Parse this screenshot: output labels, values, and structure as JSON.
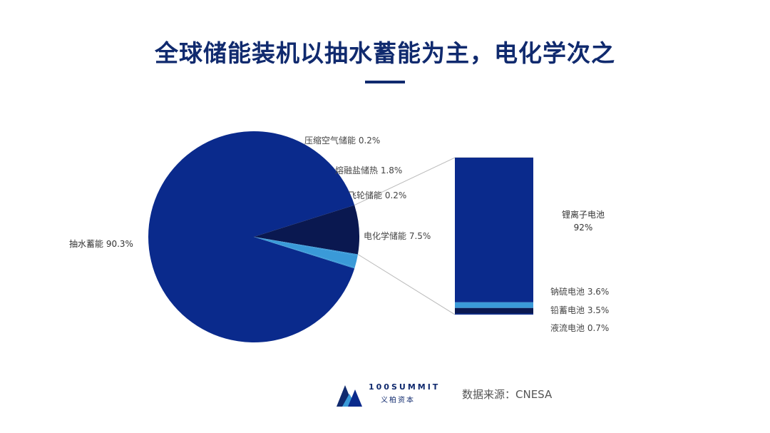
{
  "title": "全球储能装机以抽水蓄能为主，电化学次之",
  "colors": {
    "title": "#102a6e",
    "main": "#0a2a8c",
    "dark": "#0a1850",
    "light": "#3a9ad8",
    "connector": "#bbbbbb"
  },
  "chart_data": [
    {
      "type": "pie",
      "title": "",
      "slices": [
        {
          "label": "抽水蓄能",
          "value": 90.3,
          "value_text": "90.3%",
          "color": "#0a2a8c"
        },
        {
          "label": "电化学储能",
          "value": 7.5,
          "value_text": "7.5%",
          "color": "#0a1850"
        },
        {
          "label": "飞轮储能",
          "value": 0.2,
          "value_text": "0.2%",
          "color": "#3a9ad8"
        },
        {
          "label": "熔融盐储热",
          "value": 1.8,
          "value_text": "1.8%",
          "color": "#3a9ad8"
        },
        {
          "label": "压缩空气储能",
          "value": 0.2,
          "value_text": "0.2%",
          "color": "#3a9ad8"
        }
      ]
    },
    {
      "type": "bar",
      "stacked": true,
      "title": "",
      "breakdown_of": "电化学储能",
      "segments": [
        {
          "label": "锂离子电池",
          "value": 92,
          "value_text": "92%",
          "color": "#0a2a8c"
        },
        {
          "label": "钠硫电池",
          "value": 3.6,
          "value_text": "3.6%",
          "color": "#3a9ad8"
        },
        {
          "label": "铅蓄电池",
          "value": 3.5,
          "value_text": "3.5%",
          "color": "#0a1850"
        },
        {
          "label": "液流电池",
          "value": 0.7,
          "value_text": "0.7%",
          "color": "#0a2a8c"
        }
      ]
    }
  ],
  "logo": {
    "name": "100SUMMIT",
    "subname": "义柏资本"
  },
  "source": "数据来源：CNESA"
}
